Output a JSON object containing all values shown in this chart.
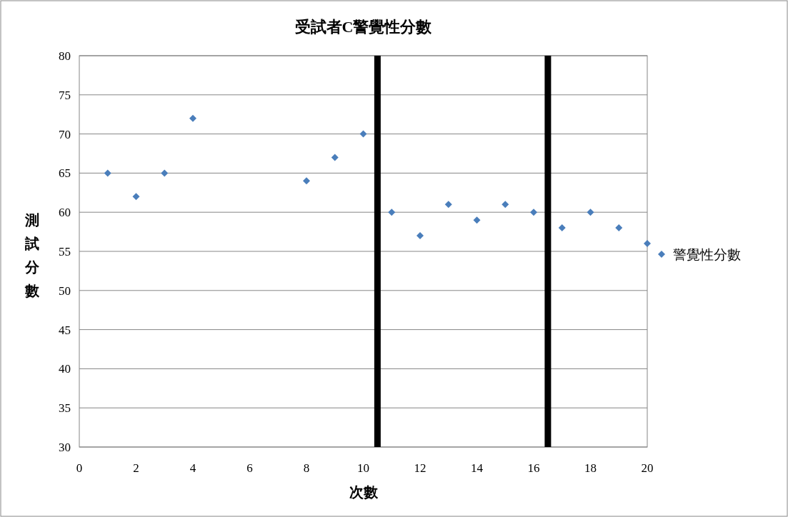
{
  "chart_data": {
    "type": "scatter",
    "title": "受試者C警覺性分數",
    "xlabel": "次數",
    "ylabel": "測試分數",
    "series": [
      {
        "name": "警覺性分數",
        "color": "#4a7ebb",
        "x": [
          1,
          2,
          3,
          4,
          8,
          9,
          10,
          11,
          12,
          13,
          14,
          15,
          16,
          17,
          18,
          19,
          20
        ],
        "values": [
          65,
          62,
          65,
          72,
          64,
          67,
          70,
          60,
          57,
          61,
          59,
          61,
          60,
          58,
          60,
          58,
          56
        ]
      }
    ],
    "xlim": [
      0,
      20
    ],
    "xticks": [
      0,
      2,
      4,
      6,
      8,
      10,
      12,
      14,
      16,
      18,
      20
    ],
    "ylim": [
      30,
      80
    ],
    "yticks": [
      30,
      35,
      40,
      45,
      50,
      55,
      60,
      65,
      70,
      75,
      80
    ],
    "ref_lines": [
      {
        "axis": "x",
        "value": 10.5,
        "color": "#000000"
      },
      {
        "axis": "x",
        "value": 16.5,
        "color": "#000000"
      }
    ],
    "grid": "y",
    "legend": "right",
    "marker": "diamond"
  }
}
